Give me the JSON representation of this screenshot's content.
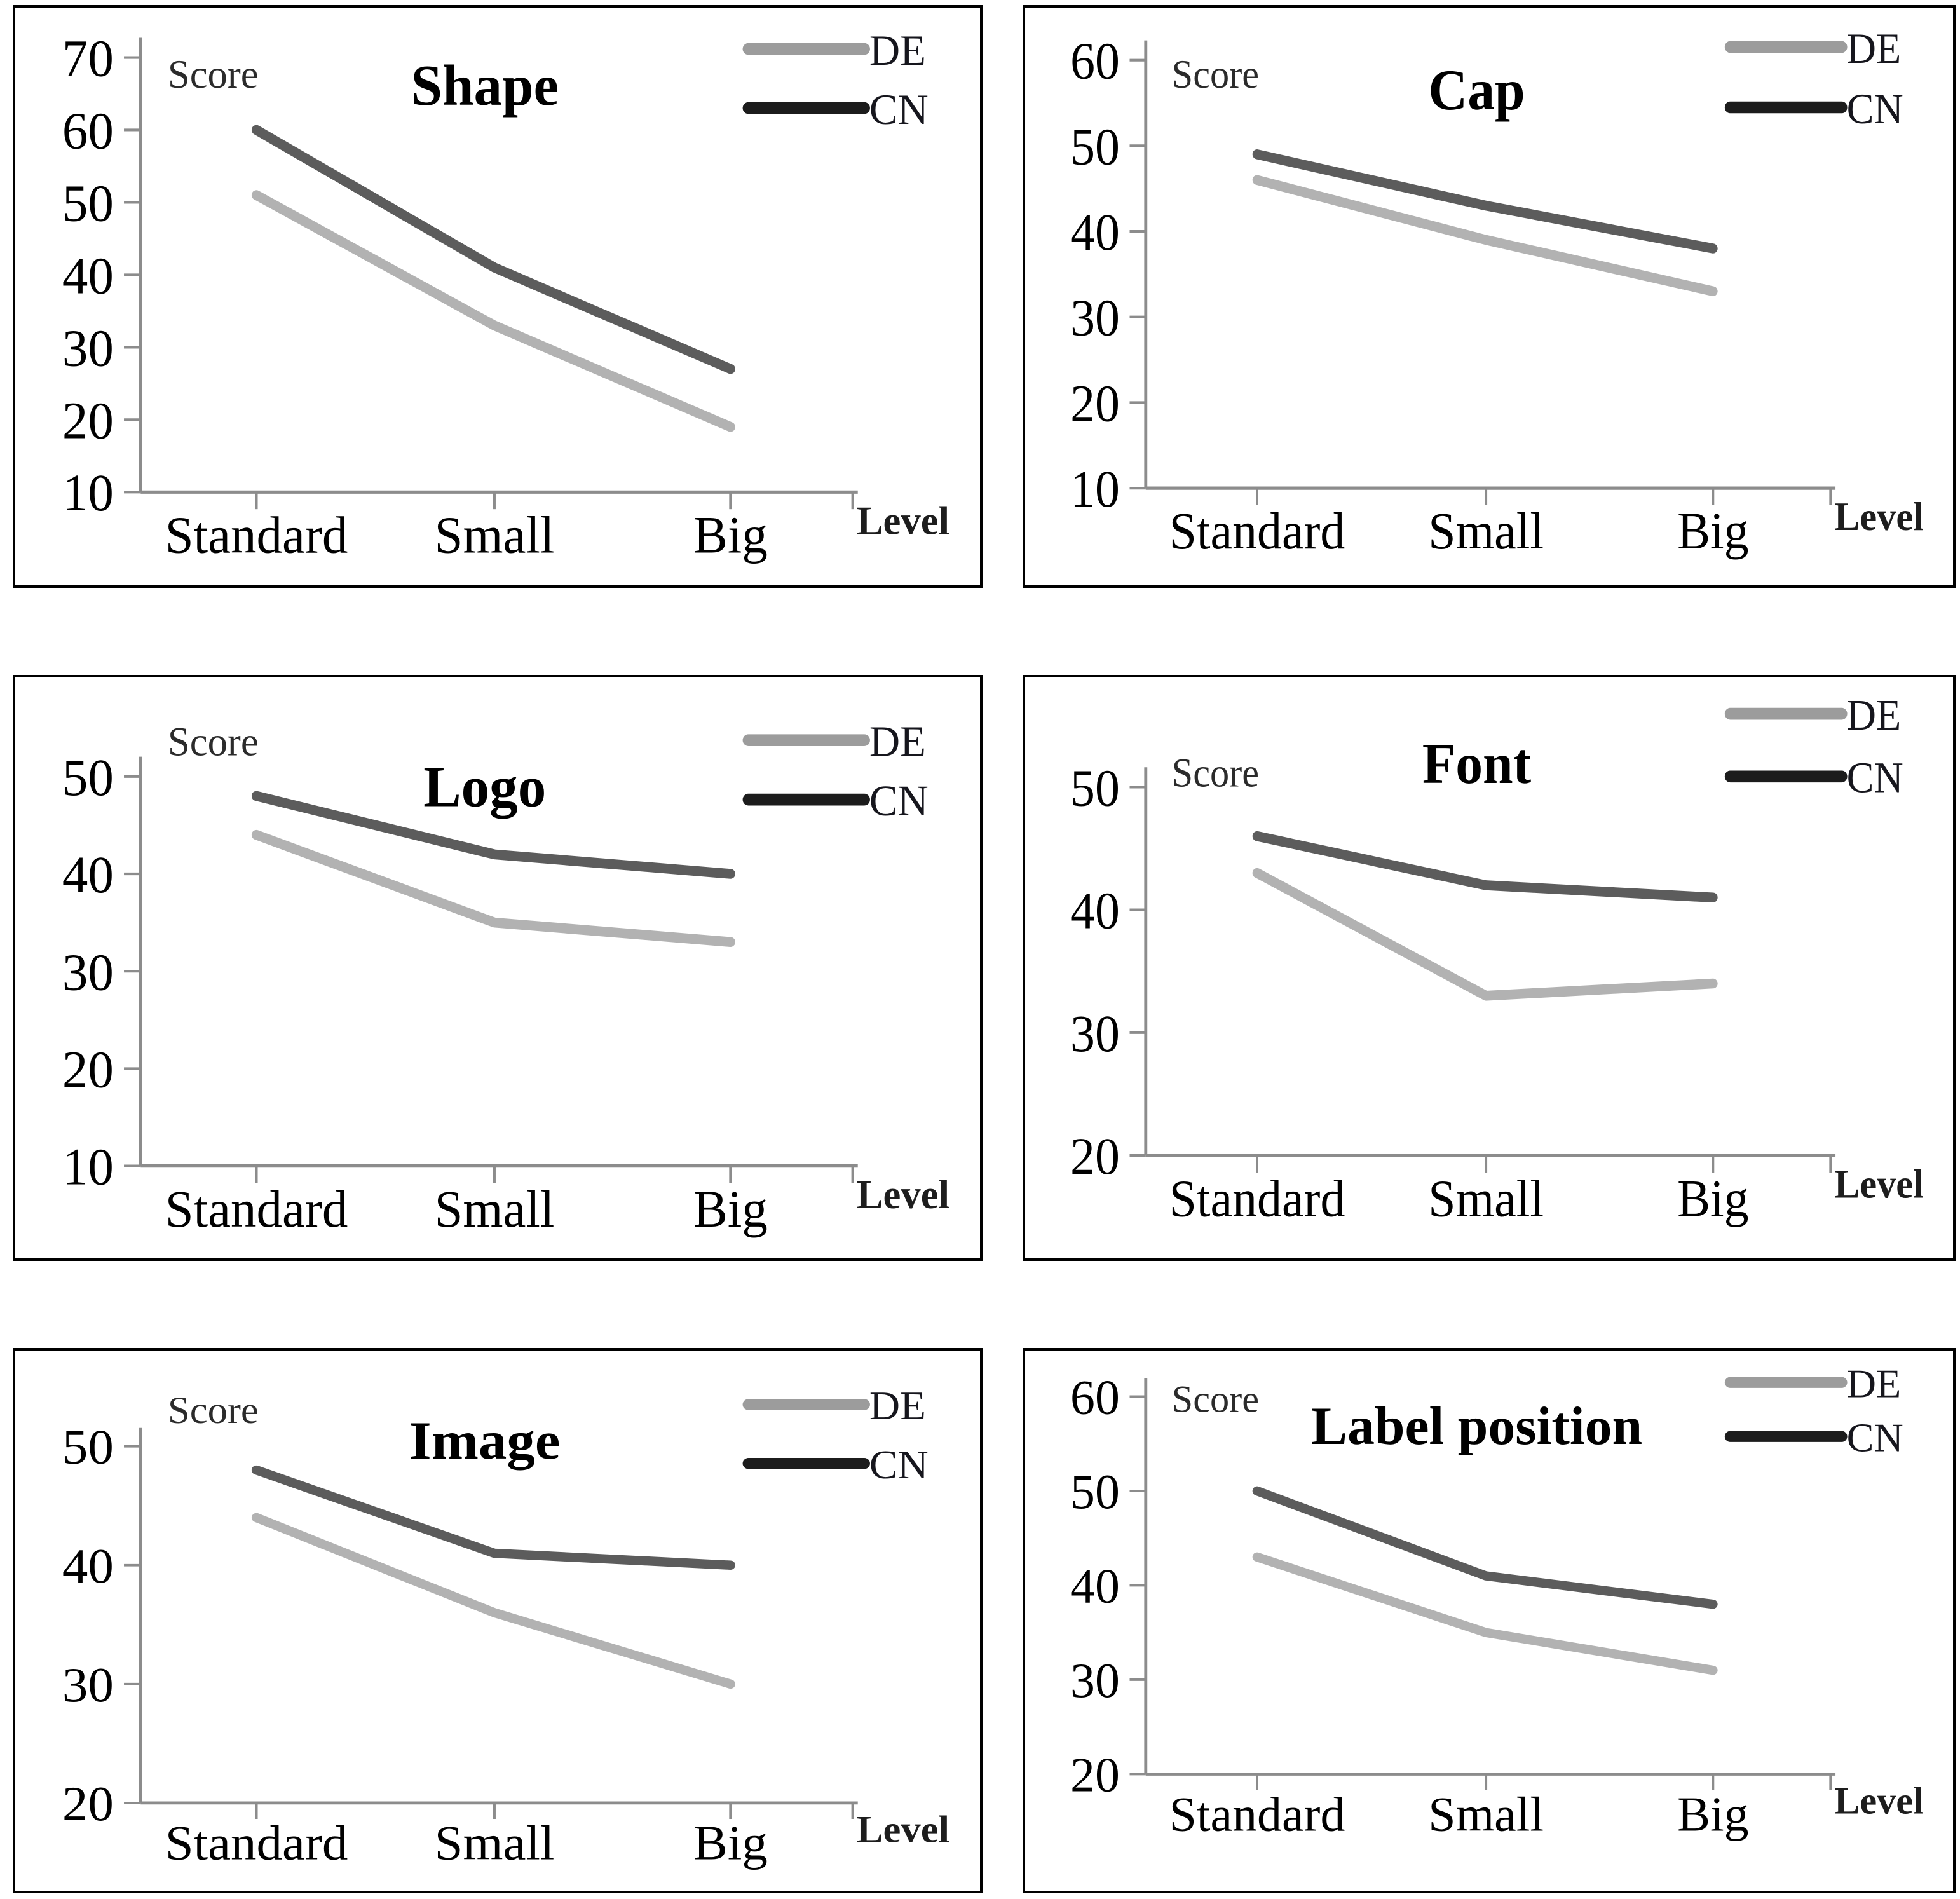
{
  "figure": {
    "background": "#ffffff",
    "panel_border_color": "#000000",
    "axis_color": "#8c8c8c",
    "text_color": "#000000",
    "score_label_color": "#2b2b2b"
  },
  "legend": {
    "position": "top-right",
    "items": [
      {
        "label": "DE",
        "swatch_color": "#9c9c9c"
      },
      {
        "label": "CN",
        "swatch_color": "#1c1c1c"
      }
    ]
  },
  "chart_data": [
    {
      "type": "line",
      "title": "Shape",
      "ylabel": "Score",
      "xlabel": "Level",
      "categories": [
        "Standard",
        "Small",
        "Big"
      ],
      "y_ticks": [
        70,
        60,
        50,
        40,
        30,
        20,
        10
      ],
      "ylim": [
        10,
        70
      ],
      "grid": false,
      "legend_position": "top-right",
      "series": [
        {
          "name": "DE",
          "color": "#b2b2b2",
          "values": [
            51,
            33,
            19
          ]
        },
        {
          "name": "CN",
          "color": "#5c5c5c",
          "values": [
            60,
            41,
            27
          ]
        }
      ]
    },
    {
      "type": "line",
      "title": "Cap",
      "ylabel": "Score",
      "xlabel": "Level",
      "categories": [
        "Standard",
        "Small",
        "Big"
      ],
      "y_ticks": [
        60,
        50,
        40,
        30,
        20,
        10
      ],
      "ylim": [
        10,
        60
      ],
      "grid": false,
      "legend_position": "top-right",
      "series": [
        {
          "name": "DE",
          "color": "#b2b2b2",
          "values": [
            46,
            39,
            33
          ]
        },
        {
          "name": "CN",
          "color": "#5c5c5c",
          "values": [
            49,
            43,
            38
          ]
        }
      ]
    },
    {
      "type": "line",
      "title": "Logo",
      "ylabel": "Score",
      "xlabel": "Level",
      "categories": [
        "Standard",
        "Small",
        "Big"
      ],
      "y_ticks": [
        50,
        40,
        30,
        20,
        10
      ],
      "ylim": [
        10,
        50
      ],
      "grid": false,
      "legend_position": "top-right",
      "series": [
        {
          "name": "DE",
          "color": "#b2b2b2",
          "values": [
            44,
            35,
            33
          ]
        },
        {
          "name": "CN",
          "color": "#5c5c5c",
          "values": [
            48,
            42,
            40
          ]
        }
      ]
    },
    {
      "type": "line",
      "title": "Font",
      "ylabel": "Score",
      "xlabel": "Level",
      "categories": [
        "Standard",
        "Small",
        "Big"
      ],
      "y_ticks": [
        50,
        40,
        30,
        20
      ],
      "ylim": [
        20,
        50
      ],
      "grid": false,
      "legend_position": "top-right",
      "series": [
        {
          "name": "DE",
          "color": "#b2b2b2",
          "values": [
            43,
            33,
            34
          ]
        },
        {
          "name": "CN",
          "color": "#5c5c5c",
          "values": [
            46,
            42,
            41
          ]
        }
      ]
    },
    {
      "type": "line",
      "title": "Image",
      "ylabel": "Score",
      "xlabel": "Level",
      "categories": [
        "Standard",
        "Small",
        "Big"
      ],
      "y_ticks": [
        50,
        40,
        30,
        20
      ],
      "ylim": [
        20,
        50
      ],
      "grid": false,
      "legend_position": "top-right",
      "series": [
        {
          "name": "DE",
          "color": "#b2b2b2",
          "values": [
            44,
            36,
            30
          ]
        },
        {
          "name": "CN",
          "color": "#5c5c5c",
          "values": [
            48,
            41,
            40
          ]
        }
      ]
    },
    {
      "type": "line",
      "title": "Label position",
      "ylabel": "Score",
      "xlabel": "Level",
      "categories": [
        "Standard",
        "Small",
        "Big"
      ],
      "y_ticks": [
        60,
        50,
        40,
        30,
        20
      ],
      "ylim": [
        20,
        60
      ],
      "grid": false,
      "legend_position": "top-right",
      "series": [
        {
          "name": "DE",
          "color": "#b2b2b2",
          "values": [
            43,
            35,
            31
          ]
        },
        {
          "name": "CN",
          "color": "#5c5c5c",
          "values": [
            50,
            41,
            38
          ]
        }
      ]
    }
  ]
}
